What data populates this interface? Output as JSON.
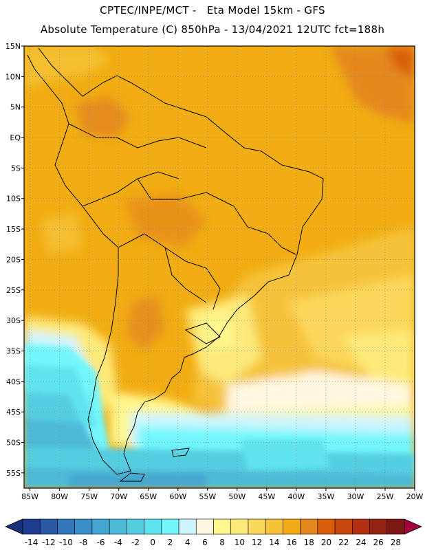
{
  "header": {
    "line1": "CPTEC/INPE/MCT -   Eta Model 15km - GFS",
    "line2": "Absolute Temperature (C) 850hPa - 13/04/2021 12UTC fct=188h"
  },
  "map": {
    "lat_labels": [
      "15N",
      "10N",
      "5N",
      "EQ",
      "5S",
      "10S",
      "15S",
      "20S",
      "25S",
      "30S",
      "35S",
      "40S",
      "45S",
      "50S",
      "55S"
    ],
    "lon_labels": [
      "85W",
      "80W",
      "75W",
      "70W",
      "65W",
      "60W",
      "55W",
      "50W",
      "45W",
      "40W",
      "35W",
      "30W",
      "25W",
      "20W"
    ],
    "lat_range": [
      15,
      -57.5
    ],
    "lon_range": [
      -86,
      -20
    ],
    "grid": "dotted"
  },
  "colorbar": {
    "labels": [
      "-14",
      "-12",
      "-10",
      "-8",
      "-6",
      "-4",
      "-2",
      "0",
      "2",
      "4",
      "6",
      "8",
      "10",
      "12",
      "14",
      "16",
      "18",
      "20",
      "22",
      "24",
      "26",
      "28"
    ],
    "colors": [
      "#1f3b8e",
      "#2a58a4",
      "#3277b8",
      "#3b8fc6",
      "#44a6d0",
      "#4dbad8",
      "#55cde0",
      "#5fe3ee",
      "#72f6fc",
      "#cdf4fe",
      "#fff7e1",
      "#fff68d",
      "#fde97a",
      "#fbd85b",
      "#f5c33a",
      "#f1ad13",
      "#e4881e",
      "#d8600b",
      "#c74710",
      "#b13112",
      "#942311",
      "#7e1915"
    ],
    "end_low": "#1a2f7a",
    "end_high": "#a0003c"
  }
}
